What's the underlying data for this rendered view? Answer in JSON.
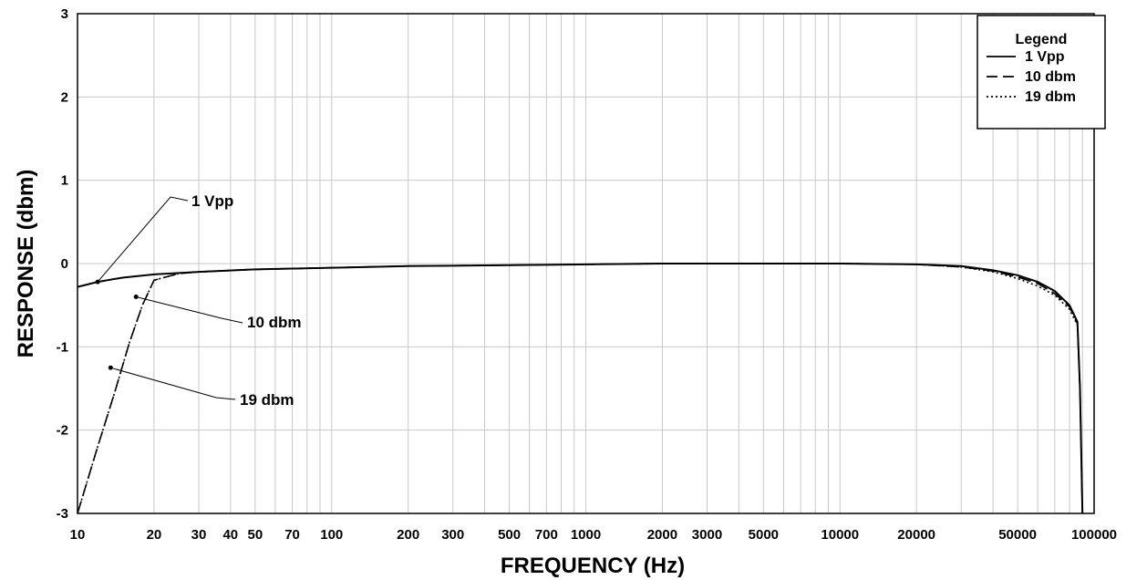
{
  "chart_data": {
    "type": "line",
    "title": "",
    "xlabel": "FREQUENCY (Hz)",
    "ylabel": "RESPONSE (dbm)",
    "x_scale": "log",
    "xlim": [
      10,
      100000
    ],
    "ylim": [
      -3,
      3
    ],
    "grid": true,
    "x_ticks": [
      10,
      20,
      30,
      40,
      50,
      70,
      100,
      200,
      300,
      500,
      700,
      1000,
      2000,
      3000,
      5000,
      10000,
      20000,
      50000,
      100000
    ],
    "x_tick_labels": [
      "10",
      "20",
      "30",
      "40",
      "50",
      "70",
      "100",
      "200",
      "300",
      "500",
      "700",
      "1000",
      "2000",
      "3000",
      "5000",
      "10000",
      "20000",
      "50000",
      "100000"
    ],
    "y_ticks": [
      -3,
      -2,
      -1,
      0,
      1,
      2,
      3
    ],
    "y_tick_labels": [
      "-3",
      "-2",
      "-1",
      "0",
      "1",
      "2",
      "3"
    ],
    "legend": {
      "title": "Legend",
      "placement": "top-right",
      "entries": [
        "1 Vpp",
        "10 dbm",
        "19 dbm"
      ]
    },
    "series": [
      {
        "name": "1 Vpp",
        "line_style": "solid",
        "x": [
          10,
          12,
          15,
          20,
          30,
          50,
          100,
          200,
          500,
          1000,
          2000,
          5000,
          10000,
          20000,
          30000,
          40000,
          50000,
          60000,
          70000,
          80000,
          86000,
          88000,
          90000
        ],
        "y": [
          -0.28,
          -0.22,
          -0.17,
          -0.13,
          -0.1,
          -0.07,
          -0.05,
          -0.03,
          -0.02,
          -0.01,
          0.0,
          0.0,
          0.0,
          -0.01,
          -0.03,
          -0.08,
          -0.14,
          -0.22,
          -0.33,
          -0.5,
          -0.7,
          -1.5,
          -3.0
        ]
      },
      {
        "name": "10 dbm",
        "line_style": "dashed",
        "x": [
          10,
          12,
          14,
          16,
          18,
          20,
          25,
          30,
          50,
          100,
          200,
          500,
          1000,
          2000,
          5000,
          10000,
          20000,
          30000,
          40000,
          50000,
          60000,
          70000,
          80000,
          86000,
          88000,
          90000
        ],
        "y": [
          -3.0,
          -2.2,
          -1.55,
          -0.95,
          -0.5,
          -0.2,
          -0.12,
          -0.1,
          -0.07,
          -0.05,
          -0.03,
          -0.02,
          -0.01,
          0.0,
          0.0,
          0.0,
          -0.01,
          -0.04,
          -0.09,
          -0.16,
          -0.24,
          -0.36,
          -0.52,
          -0.72,
          -1.5,
          -3.0
        ]
      },
      {
        "name": "19 dbm",
        "line_style": "dotted",
        "x": [
          10,
          12,
          14,
          16,
          18,
          20,
          25,
          30,
          50,
          100,
          200,
          500,
          1000,
          2000,
          5000,
          10000,
          20000,
          30000,
          40000,
          50000,
          60000,
          70000,
          80000,
          86000,
          88000,
          90000
        ],
        "y": [
          -3.0,
          -2.2,
          -1.55,
          -0.95,
          -0.5,
          -0.2,
          -0.12,
          -0.1,
          -0.07,
          -0.05,
          -0.03,
          -0.02,
          -0.01,
          0.0,
          0.0,
          0.0,
          -0.01,
          -0.04,
          -0.1,
          -0.18,
          -0.27,
          -0.38,
          -0.55,
          -0.74,
          -1.5,
          -3.0
        ]
      }
    ],
    "annotations": [
      {
        "text": "1 Vpp",
        "arrow_to": {
          "x": 12,
          "y": -0.22
        }
      },
      {
        "text": "10 dbm",
        "arrow_to": {
          "x": 17,
          "y": -0.4
        }
      },
      {
        "text": "19 dbm",
        "arrow_to": {
          "x": 13.5,
          "y": -1.25
        }
      }
    ]
  }
}
